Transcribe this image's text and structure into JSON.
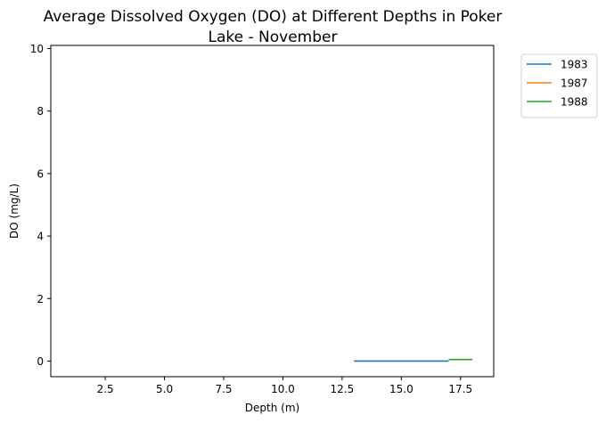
{
  "chart_data": {
    "type": "line",
    "title_lines": [
      "Average Dissolved Oxygen (DO) at Different Depths in Poker",
      "Lake - November"
    ],
    "xlabel": "Depth (m)",
    "ylabel": "DO (mg/L)",
    "xlim": [
      0.2,
      18.9
    ],
    "ylim": [
      -0.5,
      10.1
    ],
    "xticks": [
      2.5,
      5.0,
      7.5,
      10.0,
      12.5,
      15.0,
      17.5
    ],
    "xtick_labels": [
      "2.5",
      "5.0",
      "7.5",
      "10.0",
      "12.5",
      "15.0",
      "17.5"
    ],
    "yticks": [
      0,
      2,
      4,
      6,
      8,
      10
    ],
    "ytick_labels": [
      "0",
      "2",
      "4",
      "6",
      "8",
      "10"
    ],
    "grid": false,
    "legend_position": "outside-top-right",
    "series": [
      {
        "name": "1983",
        "color": "#1f77b4",
        "x": [
          13,
          17
        ],
        "y": [
          0.0,
          0.0
        ]
      },
      {
        "name": "1987",
        "color": "#ff7f0e",
        "x": [
          17,
          17
        ],
        "y": [
          0.05,
          0.05
        ]
      },
      {
        "name": "1988",
        "color": "#2ca02c",
        "x": [
          17,
          18
        ],
        "y": [
          0.05,
          0.05
        ]
      }
    ]
  }
}
